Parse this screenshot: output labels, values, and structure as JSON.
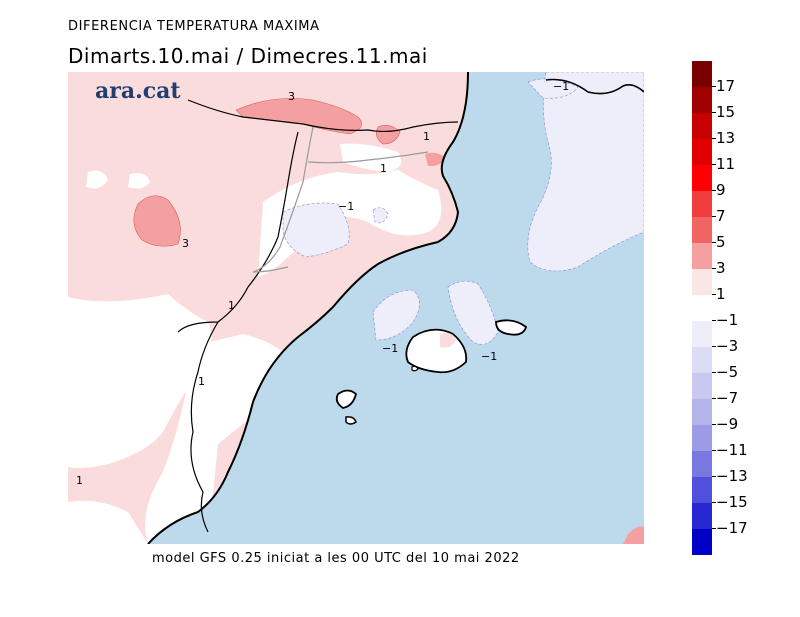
{
  "header": {
    "title": "DIFERENCIA TEMPERATURA MAXIMA",
    "dates": "Dimarts.10.mai / Dimecres.11.mai"
  },
  "logo": "ara.cat",
  "footer": "model GFS 0.25 iniciat a les 00 UTC del 10 mai 2022",
  "map_labels": [
    "3",
    "1",
    "1",
    "−1",
    "3",
    "1",
    "1",
    "1",
    "−1",
    "−1",
    "−1"
  ],
  "legend": {
    "colors": [
      "#7a0000",
      "#a00000",
      "#c80000",
      "#e00000",
      "#ff0000",
      "#f03c3c",
      "#f06464",
      "#f5a0a0",
      "#fbe6e6",
      "#ffffff",
      "#eeeefa",
      "#dcdcf5",
      "#c8c8f0",
      "#b4b4eb",
      "#9b9be6",
      "#7878e0",
      "#5050dc",
      "#2828d2",
      "#0000c8"
    ],
    "labels": [
      "17",
      "15",
      "13",
      "11",
      "9",
      "7",
      "5",
      "3",
      "1",
      "−1",
      "−3",
      "−5",
      "−7",
      "−9",
      "−11",
      "−13",
      "−15",
      "−17"
    ]
  }
}
